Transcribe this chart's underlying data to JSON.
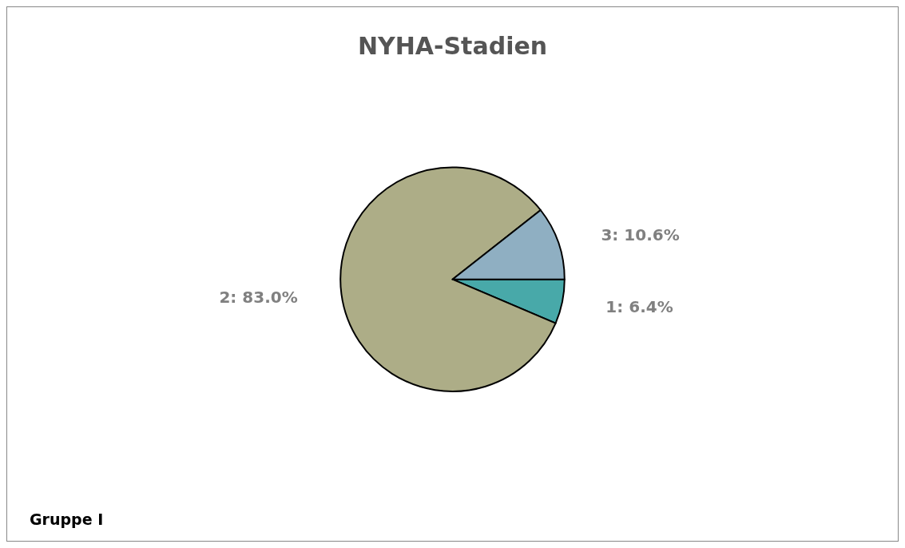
{
  "chart_data": {
    "type": "pie",
    "title": "NYHA-Stadien",
    "categories": [
      "1",
      "2",
      "3"
    ],
    "values": [
      6.4,
      83.0,
      10.6
    ],
    "value_labels": [
      "6.4%",
      "83.0%",
      "10.6%"
    ],
    "colors": [
      "#48a9a9",
      "#adad87",
      "#8fafc2"
    ],
    "legend": false,
    "annotations": [
      "Gruppe I"
    ]
  }
}
